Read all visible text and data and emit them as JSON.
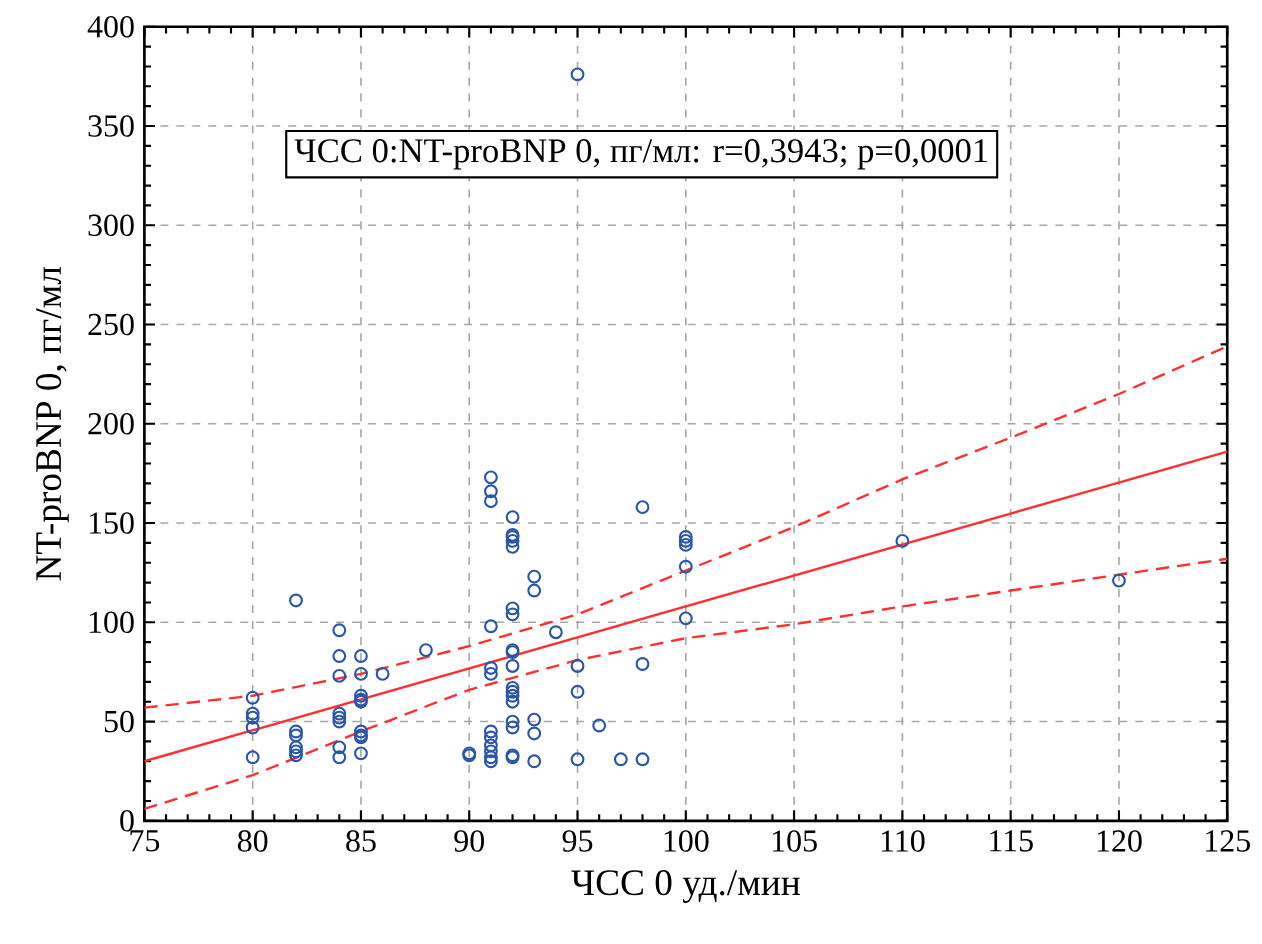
{
  "chart_data": {
    "type": "scatter",
    "xlabel": "ЧСС 0 уд./мин",
    "ylabel": "NT-proBNP 0, пг/мл",
    "annotations": [
      "ЧСС 0:NT-proBNP 0, пг/мл: r=0,3943; p=0,0001"
    ],
    "xlim": [
      75,
      125
    ],
    "ylim": [
      0,
      400
    ],
    "xticks": [
      75,
      80,
      85,
      90,
      95,
      100,
      105,
      110,
      115,
      120,
      125
    ],
    "yticks": [
      0,
      50,
      100,
      150,
      200,
      250,
      300,
      350,
      400
    ],
    "grid": true,
    "series": [
      {
        "color": "#2a56a8",
        "marker": "circle",
        "x": [
          80,
          80,
          80,
          80,
          80,
          82,
          82,
          82,
          82,
          82,
          82,
          84,
          84,
          84,
          84,
          84,
          84,
          84,
          84,
          85,
          85,
          85,
          85,
          85,
          85,
          85,
          85,
          85,
          86,
          88,
          90,
          90,
          91,
          91,
          91,
          91,
          91,
          91,
          91,
          91,
          91,
          91,
          91,
          91,
          92,
          92,
          92,
          92,
          92,
          92,
          92,
          92,
          92,
          92,
          92,
          92,
          92,
          92,
          92,
          92,
          92,
          92,
          93,
          93,
          93,
          93,
          93,
          94,
          95,
          95,
          95,
          95,
          96,
          97,
          98,
          98,
          98,
          100,
          100,
          100,
          100,
          100,
          110,
          120
        ],
        "values": [
          62,
          54,
          52,
          47,
          32,
          111,
          45,
          43,
          37,
          35,
          33,
          96,
          83,
          73,
          54,
          52,
          50,
          37,
          32,
          83,
          74,
          63,
          61,
          60,
          45,
          43,
          42,
          34,
          74,
          86,
          34,
          33,
          173,
          166,
          161,
          98,
          77,
          74,
          45,
          42,
          38,
          35,
          32,
          30,
          153,
          144,
          143,
          141,
          138,
          107,
          104,
          86,
          85,
          78,
          67,
          65,
          63,
          60,
          50,
          47,
          33,
          32,
          123,
          116,
          51,
          44,
          30,
          95,
          376,
          78,
          65,
          31,
          48,
          31,
          158,
          79,
          31,
          143,
          141,
          139,
          128,
          102,
          141,
          121
        ]
      },
      {
        "type": "line",
        "color": "#ff3030",
        "line_style": "solid",
        "x": [
          75,
          125
        ],
        "values": [
          30,
          186
        ]
      },
      {
        "type": "line",
        "color": "#ff3030",
        "line_style": "dashed",
        "x": [
          75,
          80,
          85,
          90,
          95,
          100,
          105,
          110,
          115,
          120,
          125
        ],
        "values": [
          57,
          63,
          74,
          88,
          104,
          126,
          148,
          172,
          193,
          215,
          239
        ]
      },
      {
        "type": "line",
        "color": "#ff3030",
        "line_style": "dashed",
        "x": [
          75,
          80,
          85,
          90,
          95,
          100,
          105,
          110,
          115,
          120,
          125
        ],
        "values": [
          6,
          23,
          45,
          66,
          81,
          92,
          99,
          108,
          116,
          124,
          132
        ]
      }
    ]
  }
}
